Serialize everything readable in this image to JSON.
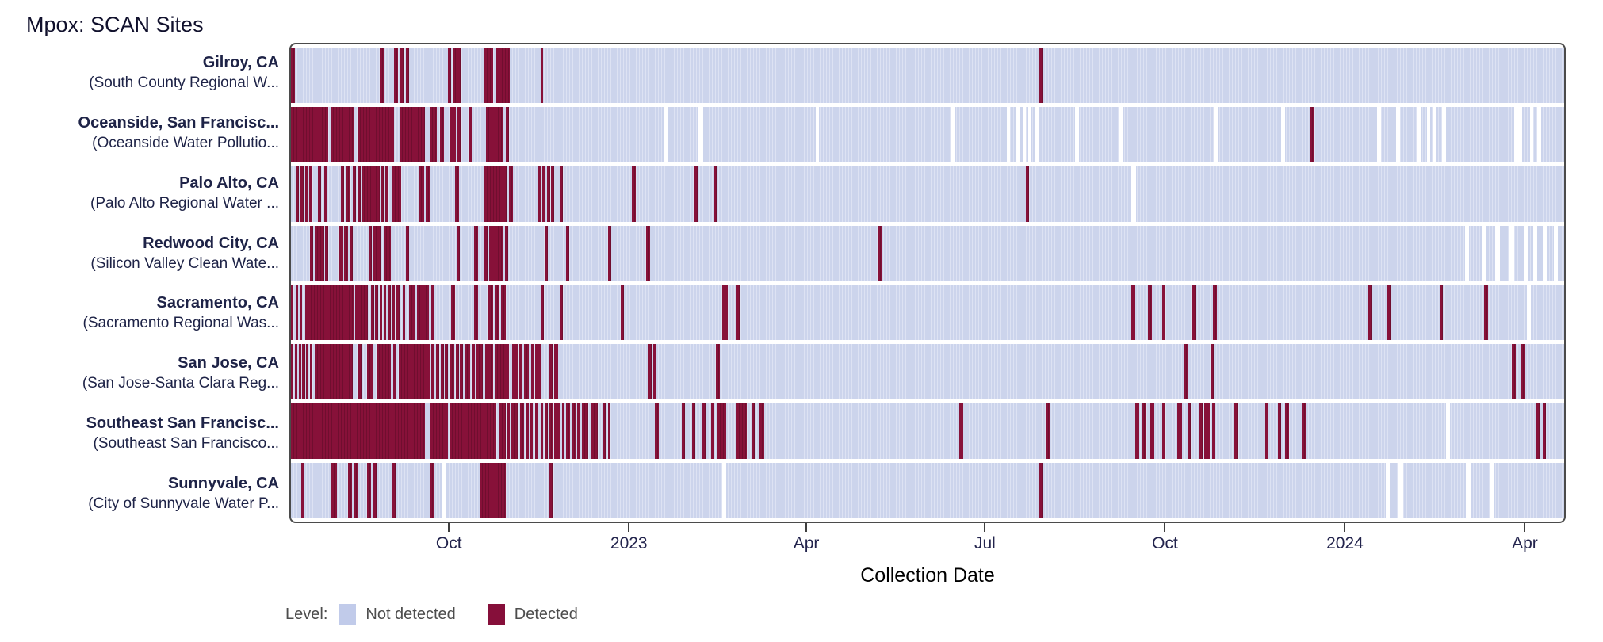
{
  "title": "Mpox: SCAN Sites",
  "chart_data": {
    "type": "heatmap",
    "xlabel": "Collection Date",
    "x_ticks": [
      {
        "label": "Oct",
        "pos": 12.5
      },
      {
        "label": "2023",
        "pos": 26.6
      },
      {
        "label": "Apr",
        "pos": 40.5
      },
      {
        "label": "Jul",
        "pos": 54.5
      },
      {
        "label": "Oct",
        "pos": 68.6
      },
      {
        "label": "2024",
        "pos": 82.7
      },
      {
        "label": "Apr",
        "pos": 96.8
      }
    ],
    "legend": {
      "title": "Level:",
      "items": [
        {
          "label": "Not detected",
          "color": "#c1cbea"
        },
        {
          "label": "Detected",
          "color": "#860f3a"
        }
      ]
    },
    "colors": {
      "not_detected": "#ccd4ec",
      "not_detected_line": "#dde2f3",
      "detected": "#871139",
      "detected_line": "#700e2f",
      "gap": "#ffffff",
      "border": "#4b4b4b",
      "label_text": "#1e2347",
      "tick_text": "#23244d"
    },
    "rows": [
      {
        "city": "Gilroy, CA",
        "facility": "(South County Regional W...",
        "detected": [
          [
            0,
            0.3
          ],
          [
            7.0,
            0.3
          ],
          [
            8.1,
            0.3
          ],
          [
            8.6,
            0.3
          ],
          [
            9.0,
            0.3
          ],
          [
            12.3,
            0.3
          ],
          [
            12.7,
            0.3
          ],
          [
            13.1,
            0.3
          ],
          [
            15.2,
            0.7
          ],
          [
            16.1,
            1.1
          ],
          [
            19.6,
            0.22
          ],
          [
            58.8,
            0.3
          ]
        ],
        "gaps": []
      },
      {
        "city": "Oceanside, San Francisc...",
        "facility": "(Oceanside Water Pollutio...",
        "detected": [
          [
            0,
            2.9
          ],
          [
            3.1,
            1.9
          ],
          [
            5.2,
            2.9
          ],
          [
            8.5,
            2.05
          ],
          [
            10.9,
            0.55
          ],
          [
            11.7,
            0.3
          ],
          [
            12.5,
            0.45
          ],
          [
            13.1,
            0.25
          ],
          [
            14.0,
            0.28
          ],
          [
            15.3,
            1.35
          ],
          [
            16.85,
            0.28
          ],
          [
            80.0,
            0.3
          ]
        ],
        "gaps": [
          [
            29.3,
            0.35
          ],
          [
            32.0,
            0.35
          ],
          [
            41.2,
            0.3
          ],
          [
            51.8,
            0.3
          ],
          [
            56.2,
            0.3
          ],
          [
            57.0,
            0.25
          ],
          [
            57.5,
            0.25
          ],
          [
            57.9,
            0.25
          ],
          [
            58.4,
            0.3
          ],
          [
            61.6,
            0.3
          ],
          [
            65.0,
            0.3
          ],
          [
            72.5,
            0.3
          ],
          [
            77.8,
            0.3
          ],
          [
            85.3,
            0.3
          ],
          [
            86.8,
            0.3
          ],
          [
            88.4,
            0.3
          ],
          [
            89.2,
            0.25
          ],
          [
            89.65,
            0.25
          ],
          [
            90.4,
            0.3
          ],
          [
            96.1,
            0.6
          ],
          [
            97.3,
            0.3
          ],
          [
            97.9,
            0.3
          ]
        ]
      },
      {
        "city": "Palo Alto, CA",
        "facility": "(Palo Alto Regional Water ...",
        "detected": [
          [
            0.4,
            0.25
          ],
          [
            0.75,
            0.25
          ],
          [
            1.1,
            0.25
          ],
          [
            1.45,
            0.25
          ],
          [
            2.1,
            0.28
          ],
          [
            2.6,
            0.28
          ],
          [
            3.9,
            0.28
          ],
          [
            4.3,
            0.28
          ],
          [
            4.85,
            0.25
          ],
          [
            5.2,
            0.25
          ],
          [
            5.55,
            0.85
          ],
          [
            6.5,
            0.45
          ],
          [
            7.05,
            0.25
          ],
          [
            7.4,
            0.28
          ],
          [
            8.0,
            0.65
          ],
          [
            10.0,
            0.45
          ],
          [
            10.6,
            0.35
          ],
          [
            12.9,
            0.28
          ],
          [
            15.2,
            1.75
          ],
          [
            17.15,
            0.28
          ],
          [
            19.4,
            0.25
          ],
          [
            19.75,
            0.25
          ],
          [
            20.1,
            0.25
          ],
          [
            20.45,
            0.25
          ],
          [
            21.1,
            0.28
          ],
          [
            26.8,
            0.28
          ],
          [
            31.7,
            0.28
          ],
          [
            33.2,
            0.28
          ],
          [
            57.7,
            0.3
          ]
        ],
        "gaps": [
          [
            66.0,
            0.35
          ]
        ]
      },
      {
        "city": "Redwood City, CA",
        "facility": "(Silicon Valley Clean Wate...",
        "detected": [
          [
            1.5,
            0.25
          ],
          [
            1.85,
            0.75
          ],
          [
            2.7,
            0.25
          ],
          [
            3.8,
            0.28
          ],
          [
            4.2,
            0.28
          ],
          [
            4.6,
            0.28
          ],
          [
            6.1,
            0.25
          ],
          [
            6.45,
            0.25
          ],
          [
            6.8,
            0.25
          ],
          [
            7.3,
            0.55
          ],
          [
            9.0,
            0.28
          ],
          [
            13.0,
            0.28
          ],
          [
            14.4,
            0.28
          ],
          [
            15.2,
            0.25
          ],
          [
            15.55,
            1.05
          ],
          [
            16.8,
            0.28
          ],
          [
            19.9,
            0.28
          ],
          [
            21.6,
            0.28
          ],
          [
            24.9,
            0.28
          ],
          [
            27.9,
            0.28
          ],
          [
            46.1,
            0.3
          ]
        ],
        "gaps": [
          [
            92.2,
            0.35
          ],
          [
            93.5,
            0.35
          ],
          [
            94.6,
            0.35
          ],
          [
            95.7,
            0.35
          ],
          [
            96.8,
            0.35
          ],
          [
            97.6,
            0.3
          ],
          [
            98.3,
            0.3
          ],
          [
            99.2,
            0.3
          ]
        ]
      },
      {
        "city": "Sacramento, CA",
        "facility": "(Sacramento Regional Was...",
        "detected": [
          [
            0,
            0.2
          ],
          [
            0.35,
            0.2
          ],
          [
            0.7,
            0.2
          ],
          [
            1.1,
            3.8
          ],
          [
            5.05,
            1.0
          ],
          [
            6.3,
            0.22
          ],
          [
            6.62,
            0.22
          ],
          [
            6.95,
            0.22
          ],
          [
            7.28,
            0.22
          ],
          [
            7.6,
            0.22
          ],
          [
            7.95,
            0.22
          ],
          [
            8.3,
            0.22
          ],
          [
            8.75,
            0.22
          ],
          [
            9.3,
            0.45
          ],
          [
            9.9,
            0.95
          ],
          [
            11.0,
            0.25
          ],
          [
            12.6,
            0.28
          ],
          [
            14.4,
            0.28
          ],
          [
            15.5,
            0.35
          ],
          [
            16.0,
            0.3
          ],
          [
            16.5,
            0.4
          ],
          [
            19.6,
            0.28
          ],
          [
            21.1,
            0.28
          ],
          [
            25.9,
            0.28
          ],
          [
            33.9,
            0.4
          ],
          [
            35.0,
            0.28
          ],
          [
            66.0,
            0.3
          ],
          [
            67.3,
            0.3
          ],
          [
            68.4,
            0.3
          ],
          [
            70.8,
            0.3
          ],
          [
            72.4,
            0.3
          ],
          [
            84.6,
            0.3
          ],
          [
            86.1,
            0.3
          ],
          [
            90.2,
            0.3
          ],
          [
            93.7,
            0.3
          ]
        ],
        "gaps": [
          [
            97.1,
            0.3
          ]
        ]
      },
      {
        "city": "San Jose, CA",
        "facility": "(San Jose-Santa Clara Reg...",
        "detected": [
          [
            0,
            0.2
          ],
          [
            0.3,
            0.2
          ],
          [
            0.6,
            0.2
          ],
          [
            0.9,
            0.2
          ],
          [
            1.2,
            0.2
          ],
          [
            1.5,
            0.2
          ],
          [
            1.85,
            3.0
          ],
          [
            5.3,
            0.25
          ],
          [
            6.0,
            0.5
          ],
          [
            6.7,
            1.15
          ],
          [
            8.05,
            0.25
          ],
          [
            8.45,
            2.45
          ],
          [
            11.05,
            0.25
          ],
          [
            11.4,
            0.25
          ],
          [
            11.75,
            0.25
          ],
          [
            12.1,
            0.25
          ],
          [
            12.45,
            0.35
          ],
          [
            12.95,
            0.22
          ],
          [
            13.25,
            0.25
          ],
          [
            13.65,
            0.45
          ],
          [
            14.25,
            0.22
          ],
          [
            14.6,
            0.5
          ],
          [
            15.25,
            0.6
          ],
          [
            16.0,
            1.15
          ],
          [
            17.35,
            0.22
          ],
          [
            17.65,
            0.22
          ],
          [
            17.95,
            0.22
          ],
          [
            18.3,
            0.4
          ],
          [
            18.85,
            0.22
          ],
          [
            19.15,
            0.22
          ],
          [
            19.45,
            0.22
          ],
          [
            20.3,
            0.25
          ],
          [
            20.65,
            0.35
          ],
          [
            28.1,
            0.25
          ],
          [
            28.45,
            0.25
          ],
          [
            33.4,
            0.28
          ],
          [
            70.1,
            0.3
          ],
          [
            72.2,
            0.3
          ],
          [
            95.9,
            0.3
          ],
          [
            96.6,
            0.3
          ]
        ],
        "gaps": []
      },
      {
        "city": "Southeast San Francisc...",
        "facility": "(Southeast San Francisco...",
        "detected": [
          [
            0,
            10.55
          ],
          [
            10.95,
            1.35
          ],
          [
            12.45,
            3.7
          ],
          [
            16.35,
            0.5
          ],
          [
            17.0,
            0.2
          ],
          [
            17.3,
            0.55
          ],
          [
            18.0,
            0.3
          ],
          [
            18.5,
            0.2
          ],
          [
            18.8,
            0.22
          ],
          [
            19.15,
            0.3
          ],
          [
            19.6,
            0.2
          ],
          [
            19.95,
            0.2
          ],
          [
            20.25,
            0.3
          ],
          [
            20.65,
            0.5
          ],
          [
            21.3,
            0.2
          ],
          [
            21.6,
            0.3
          ],
          [
            22.05,
            0.3
          ],
          [
            22.5,
            0.22
          ],
          [
            22.85,
            0.5
          ],
          [
            23.6,
            0.5
          ],
          [
            24.45,
            0.3
          ],
          [
            24.9,
            0.22
          ],
          [
            28.6,
            0.28
          ],
          [
            30.7,
            0.25
          ],
          [
            31.5,
            0.25
          ],
          [
            32.3,
            0.25
          ],
          [
            33.0,
            0.22
          ],
          [
            33.5,
            0.7
          ],
          [
            35.0,
            0.8
          ],
          [
            36.2,
            0.25
          ],
          [
            36.8,
            0.35
          ],
          [
            52.5,
            0.3
          ],
          [
            59.3,
            0.3
          ],
          [
            66.3,
            0.3
          ],
          [
            66.8,
            0.35
          ],
          [
            67.5,
            0.3
          ],
          [
            68.4,
            0.3
          ],
          [
            69.6,
            0.4
          ],
          [
            70.4,
            0.3
          ],
          [
            71.35,
            0.25
          ],
          [
            71.7,
            0.45
          ],
          [
            72.35,
            0.25
          ],
          [
            74.1,
            0.3
          ],
          [
            76.5,
            0.3
          ],
          [
            77.5,
            0.3
          ],
          [
            78.1,
            0.3
          ],
          [
            79.4,
            0.3
          ],
          [
            97.8,
            0.25
          ],
          [
            98.3,
            0.25
          ]
        ],
        "gaps": [
          [
            90.7,
            0.35
          ]
        ]
      },
      {
        "city": "Sunnyvale, CA",
        "facility": "(City of Sunnyvale Water P...",
        "detected": [
          [
            0.8,
            0.28
          ],
          [
            3.2,
            0.4
          ],
          [
            4.5,
            0.28
          ],
          [
            4.95,
            0.28
          ],
          [
            6.0,
            0.3
          ],
          [
            6.45,
            0.25
          ],
          [
            8.0,
            0.3
          ],
          [
            10.9,
            0.3
          ],
          [
            14.85,
            2.0
          ],
          [
            20.3,
            0.25
          ],
          [
            58.8,
            0.3
          ]
        ],
        "gaps": [
          [
            11.9,
            0.3
          ],
          [
            33.9,
            0.3
          ],
          [
            86.0,
            0.3
          ],
          [
            86.9,
            0.45
          ],
          [
            92.3,
            0.35
          ],
          [
            94.2,
            0.3
          ]
        ]
      }
    ]
  }
}
